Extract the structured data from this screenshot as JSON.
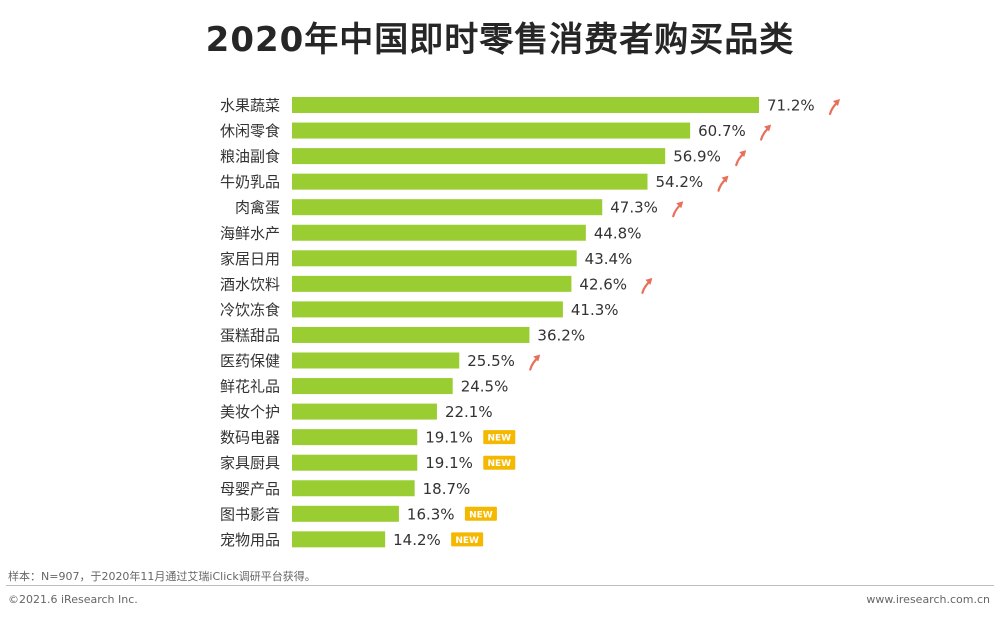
{
  "chart_data": {
    "type": "bar",
    "orientation": "horizontal",
    "title": "2020年中国即时零售消费者购买品类",
    "categories": [
      "水果蔬菜",
      "休闲零食",
      "粮油副食",
      "牛奶乳品",
      "肉禽蛋",
      "海鲜水产",
      "家居日用",
      "酒水饮料",
      "冷饮冻食",
      "蛋糕甜品",
      "医药保健",
      "鲜花礼品",
      "美妆个护",
      "数码电器",
      "家具厨具",
      "母婴产品",
      "图书影音",
      "宠物用品"
    ],
    "values": [
      71.2,
      60.7,
      56.9,
      54.2,
      47.3,
      44.8,
      43.4,
      42.6,
      41.3,
      36.2,
      25.5,
      24.5,
      22.1,
      19.1,
      19.1,
      18.7,
      16.3,
      14.2
    ],
    "value_labels": [
      "71.2%",
      "60.7%",
      "56.9%",
      "54.2%",
      "47.3%",
      "44.8%",
      "43.4%",
      "42.6%",
      "41.3%",
      "36.2%",
      "25.5%",
      "24.5%",
      "22.1%",
      "19.1%",
      "19.1%",
      "18.7%",
      "16.3%",
      "14.2%"
    ],
    "up_arrow": [
      true,
      true,
      true,
      true,
      true,
      false,
      false,
      true,
      false,
      false,
      true,
      false,
      false,
      false,
      false,
      false,
      false,
      false
    ],
    "new_badge": [
      false,
      false,
      false,
      false,
      false,
      false,
      false,
      false,
      false,
      false,
      false,
      false,
      false,
      true,
      true,
      false,
      true,
      true
    ],
    "badge_text": "NEW",
    "xlim": [
      0,
      71.2
    ],
    "grid": false,
    "legend": "none",
    "colors": {
      "bar": "#9ACD32",
      "arrow": "#E8705A",
      "badge": "#F5B800"
    }
  },
  "footer": {
    "sample_note": "样本：N=907，于2020年11月通过艾瑞iClick调研平台获得。",
    "copyright": "©2021.6 iResearch Inc.",
    "website": "www.iresearch.com.cn"
  }
}
